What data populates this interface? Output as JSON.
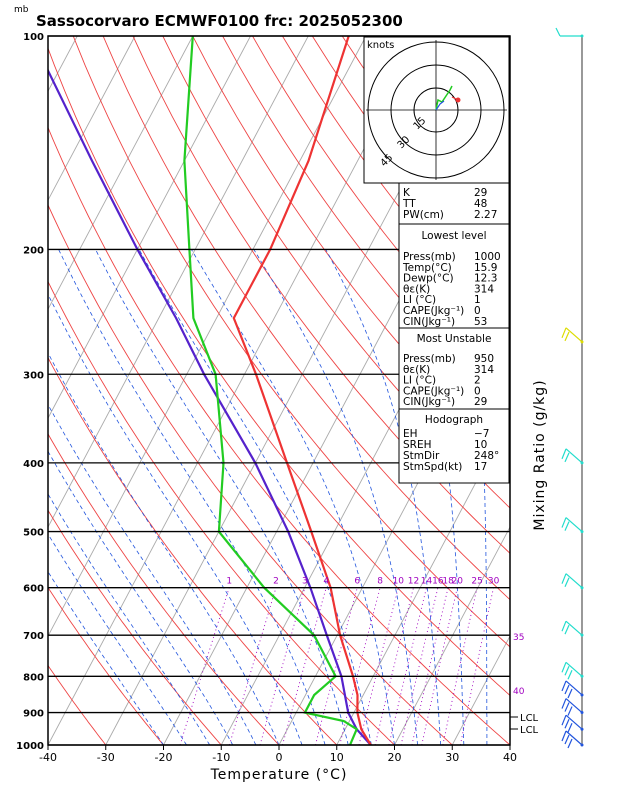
{
  "header": {
    "title": "Sassocorvaro ECMWF0100 frc: 2025052300",
    "pressure_unit": "mb"
  },
  "colors": {
    "temperature": "#ee3333",
    "dewpoint": "#22cc22",
    "parcel": "#5522cc",
    "isotherm": "#aaaaaa",
    "dry_adiabat": "#ee4444",
    "moist_adiabat": "#2255dd",
    "mixing_ratio": "#a000c0",
    "wind_barb": "#22ddcc",
    "wind_barb_alt": "#dddd00"
  },
  "chart_data": {
    "type": "skew-t",
    "xlabel": "Temperature (°C)",
    "ylabel": "Mixing Ratio (g/kg)",
    "xlim": [
      -40,
      40
    ],
    "ylim": [
      1000,
      100
    ],
    "x_ticks": [
      -40,
      -30,
      -20,
      -10,
      0,
      10,
      20,
      30,
      40
    ],
    "pressure_levels": [
      100,
      200,
      300,
      400,
      500,
      600,
      700,
      800,
      900,
      1000
    ],
    "mixing_ratio_labels": [
      "1",
      "2",
      "3",
      "4",
      "6",
      "8",
      "10",
      "12",
      "14",
      "16",
      "18",
      "20",
      "25",
      "30"
    ],
    "right_edge_labels": [
      "35",
      "40"
    ],
    "lcl_label": "LCL",
    "temperature": [
      {
        "p": 1000,
        "t": 15.9
      },
      {
        "p": 950,
        "t": 12.8
      },
      {
        "p": 900,
        "t": 10.6
      },
      {
        "p": 850,
        "t": 9.0
      },
      {
        "p": 800,
        "t": 6.5
      },
      {
        "p": 700,
        "t": 0.5
      },
      {
        "p": 600,
        "t": -5.5
      },
      {
        "p": 500,
        "t": -14.0
      },
      {
        "p": 400,
        "t": -24.5
      },
      {
        "p": 300,
        "t": -38.0
      },
      {
        "p": 250,
        "t": -47.0
      },
      {
        "p": 200,
        "t": -47.0
      },
      {
        "p": 150,
        "t": -48.5
      },
      {
        "p": 100,
        "t": -53.0
      }
    ],
    "dewpoint": [
      {
        "p": 1000,
        "t": 12.3
      },
      {
        "p": 950,
        "t": 12.0
      },
      {
        "p": 925,
        "t": 9.0
      },
      {
        "p": 900,
        "t": 1.5
      },
      {
        "p": 850,
        "t": 1.5
      },
      {
        "p": 800,
        "t": 3.5
      },
      {
        "p": 700,
        "t": -4.0
      },
      {
        "p": 600,
        "t": -17.0
      },
      {
        "p": 500,
        "t": -30.0
      },
      {
        "p": 400,
        "t": -35.5
      },
      {
        "p": 300,
        "t": -45.0
      },
      {
        "p": 250,
        "t": -54.0
      },
      {
        "p": 200,
        "t": -61.0
      },
      {
        "p": 150,
        "t": -70.0
      },
      {
        "p": 100,
        "t": -80.0
      }
    ],
    "parcel": [
      {
        "p": 1000,
        "t": 15.9
      },
      {
        "p": 950,
        "t": 12.0
      },
      {
        "p": 900,
        "t": 9.0
      },
      {
        "p": 800,
        "t": 4.5
      },
      {
        "p": 700,
        "t": -1.8
      },
      {
        "p": 600,
        "t": -9.0
      },
      {
        "p": 500,
        "t": -18.0
      },
      {
        "p": 400,
        "t": -30.0
      },
      {
        "p": 300,
        "t": -47.0
      },
      {
        "p": 250,
        "t": -57.0
      },
      {
        "p": 200,
        "t": -70.0
      },
      {
        "p": 150,
        "t": -86.0
      },
      {
        "p": 100,
        "t": -108.0
      }
    ],
    "hodograph": {
      "unit": "knots",
      "ring_labels": [
        "15",
        "30",
        "45"
      ]
    }
  },
  "indices": {
    "general": [
      {
        "label": "K",
        "value": "29"
      },
      {
        "label": "TT",
        "value": "48"
      },
      {
        "label": "PW(cm)",
        "value": "2.27"
      }
    ],
    "lowest_level": {
      "heading": "Lowest level",
      "rows": [
        {
          "label": "Press(mb)",
          "value": "1000"
        },
        {
          "label": "Temp(°C)",
          "value": "15.9"
        },
        {
          "label": "Dewp(°C)",
          "value": "12.3"
        },
        {
          "label": "θε(K)",
          "value": "314"
        },
        {
          "label": "LI (°C)",
          "value": "1"
        },
        {
          "label": "CAPE(Jkg⁻¹)",
          "value": "0"
        },
        {
          "label": "CIN(Jkg⁻¹)",
          "value": "53"
        }
      ]
    },
    "most_unstable": {
      "heading": "Most Unstable",
      "rows": [
        {
          "label": "Press(mb)",
          "value": "950"
        },
        {
          "label": "θε(K)",
          "value": "314"
        },
        {
          "label": "LI (°C)",
          "value": "2"
        },
        {
          "label": "CAPE(Jkg⁻¹)",
          "value": "0"
        },
        {
          "label": "CIN(Jkg⁻¹)",
          "value": "29"
        }
      ]
    },
    "hodograph": {
      "heading": "Hodograph",
      "rows": [
        {
          "label": "EH",
          "value": "−7"
        },
        {
          "label": "SREH",
          "value": "10"
        },
        {
          "label": "StmDir",
          "value": "248°"
        },
        {
          "label": "StmSpd(kt)",
          "value": "17"
        }
      ]
    }
  }
}
